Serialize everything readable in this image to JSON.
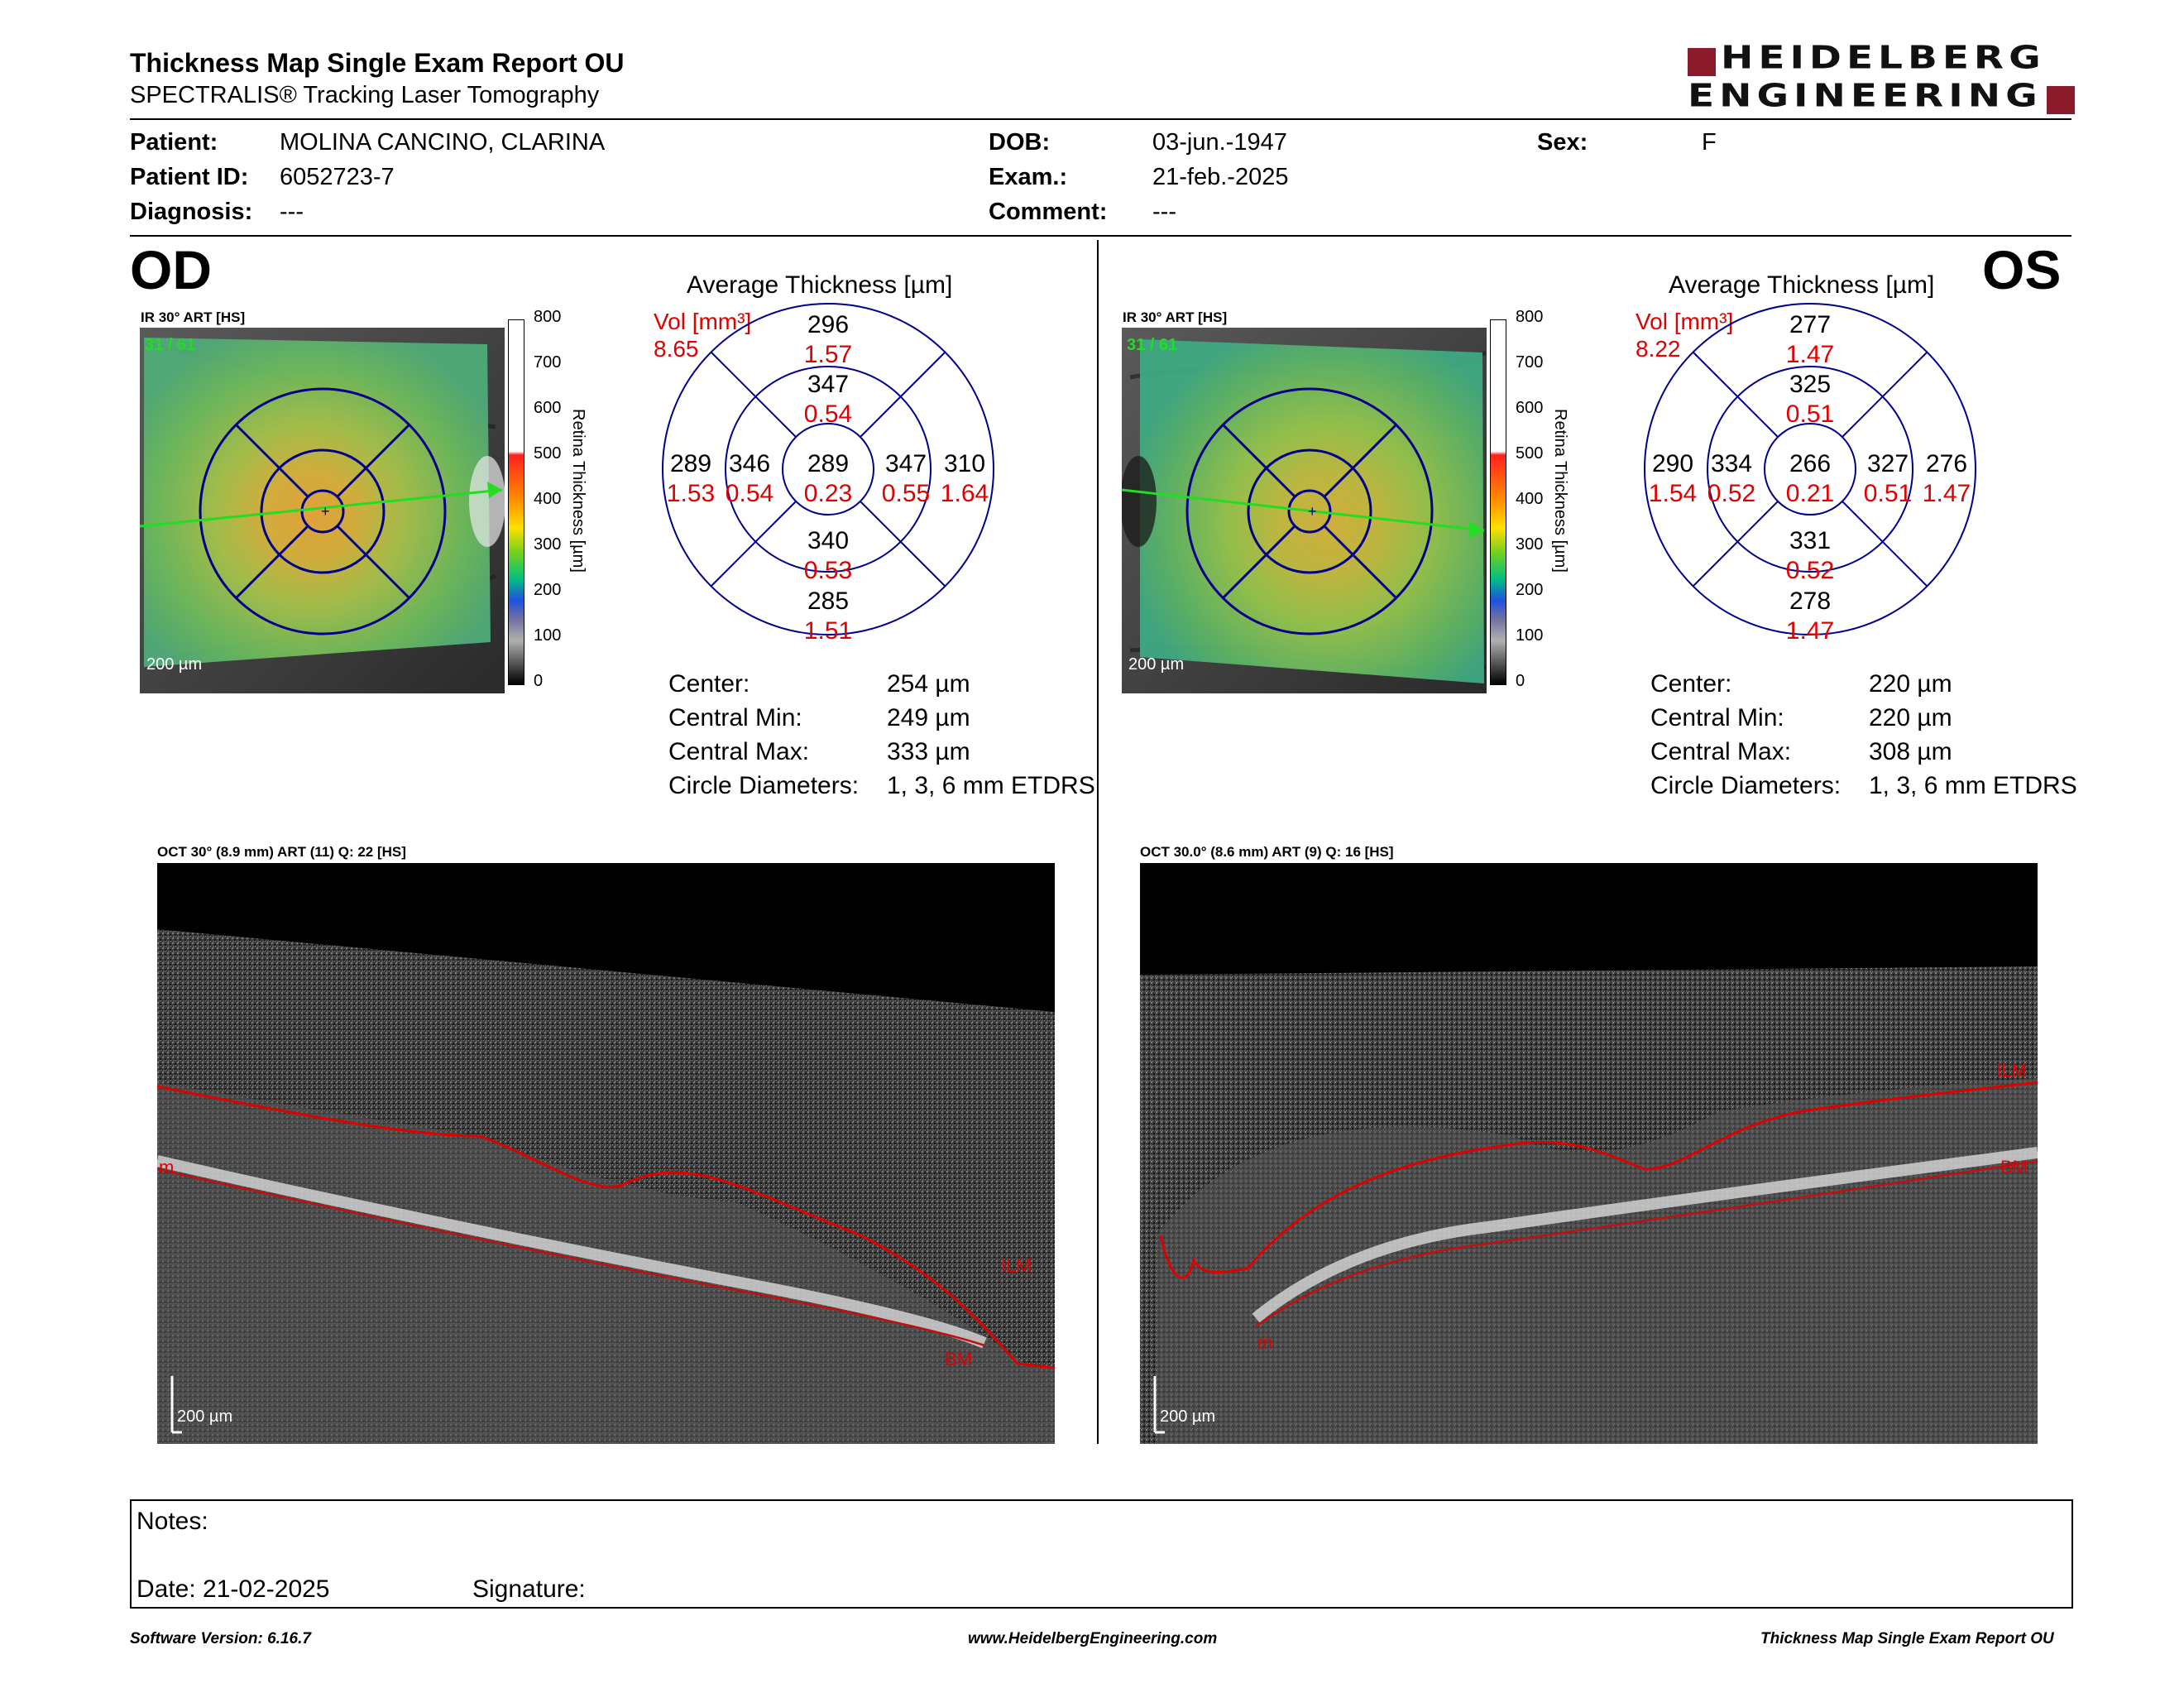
{
  "header": {
    "title": "Thickness Map Single Exam Report OU",
    "subtitle": "SPECTRALIS® Tracking Laser Tomography",
    "logo_top": "HEIDELBERG",
    "logo_bottom": "ENGINEERING"
  },
  "patient": {
    "patient_label": "Patient:",
    "patient_value": "MOLINA CANCINO, CLARINA",
    "id_label": "Patient ID:",
    "id_value": "6052723-7",
    "diagnosis_label": "Diagnosis:",
    "diagnosis_value": "---",
    "dob_label": "DOB:",
    "dob_value": "03-jun.-1947",
    "exam_label": "Exam.:",
    "exam_value": "21-feb.-2025",
    "comment_label": "Comment:",
    "comment_value": "---",
    "sex_label": "Sex:",
    "sex_value": "F"
  },
  "od": {
    "eye": "OD",
    "fundus_label": "IR 30° ART [HS]",
    "fundus_frames": "31 / 61",
    "scale_label": "200 µm",
    "colorbar_ticks": [
      "800",
      "700",
      "600",
      "500",
      "400",
      "300",
      "200",
      "100",
      "0"
    ],
    "colorbar_title": "Retina Thickness [µm]",
    "avg_title": "Average Thickness [µm]",
    "vol_label": "Vol [mm³]",
    "vol_value": "8.65",
    "etdrs": {
      "outer_top": "296",
      "outer_top_vol": "1.57",
      "inner_top": "347",
      "inner_top_vol": "0.54",
      "outer_left": "289",
      "outer_left_vol": "1.53",
      "inner_left": "346",
      "inner_left_vol": "0.54",
      "center": "289",
      "center_vol": "0.23",
      "inner_right": "347",
      "inner_right_vol": "0.55",
      "outer_right": "310",
      "outer_right_vol": "1.64",
      "inner_bottom": "340",
      "inner_bottom_vol": "0.53",
      "outer_bottom": "285",
      "outer_bottom_vol": "1.51"
    },
    "stats": {
      "center_label": "Center:",
      "center_value": "254 µm",
      "min_label": "Central Min:",
      "min_value": "249 µm",
      "max_label": "Central Max:",
      "max_value": "333 µm",
      "diam_label": "Circle Diameters:",
      "diam_value": "1, 3, 6 mm ETDRS"
    },
    "oct_label": "OCT 30° (8.9 mm) ART (11) Q: 22 [HS]",
    "oct_scale": "200 µm",
    "oct_ilm": "ILM",
    "oct_bm": "BM",
    "oct_m": "m"
  },
  "os": {
    "eye": "OS",
    "fundus_label": "IR 30° ART [HS]",
    "fundus_frames": "31 / 61",
    "scale_label": "200 µm",
    "colorbar_ticks": [
      "800",
      "700",
      "600",
      "500",
      "400",
      "300",
      "200",
      "100",
      "0"
    ],
    "colorbar_title": "Retina Thickness [µm]",
    "avg_title": "Average Thickness [µm]",
    "vol_label": "Vol [mm³]",
    "vol_value": "8.22",
    "etdrs": {
      "outer_top": "277",
      "outer_top_vol": "1.47",
      "inner_top": "325",
      "inner_top_vol": "0.51",
      "outer_left": "290",
      "outer_left_vol": "1.54",
      "inner_left": "334",
      "inner_left_vol": "0.52",
      "center": "266",
      "center_vol": "0.21",
      "inner_right": "327",
      "inner_right_vol": "0.51",
      "outer_right": "276",
      "outer_right_vol": "1.47",
      "inner_bottom": "331",
      "inner_bottom_vol": "0.52",
      "outer_bottom": "278",
      "outer_bottom_vol": "1.47"
    },
    "stats": {
      "center_label": "Center:",
      "center_value": "220 µm",
      "min_label": "Central Min:",
      "min_value": "220 µm",
      "max_label": "Central Max:",
      "max_value": "308 µm",
      "diam_label": "Circle Diameters:",
      "diam_value": "1, 3, 6 mm ETDRS"
    },
    "oct_label": "OCT 30.0° (8.6 mm) ART (9) Q: 16 [HS]",
    "oct_scale": "200 µm",
    "oct_ilm": "ILM",
    "oct_bm": "BM",
    "oct_m": "m"
  },
  "notes": {
    "notes_label": "Notes:",
    "date_label": "Date: 21-02-2025",
    "signature_label": "Signature:"
  },
  "footer": {
    "software": "Software Version: 6.16.7",
    "website": "www.HeidelbergEngineering.com",
    "report": "Thickness Map Single Exam Report OU"
  },
  "colors": {
    "grid_blue": "#00008b",
    "vol_red": "#e00000",
    "logo_red": "#8b1a2b",
    "scan_green": "#22dd22"
  }
}
